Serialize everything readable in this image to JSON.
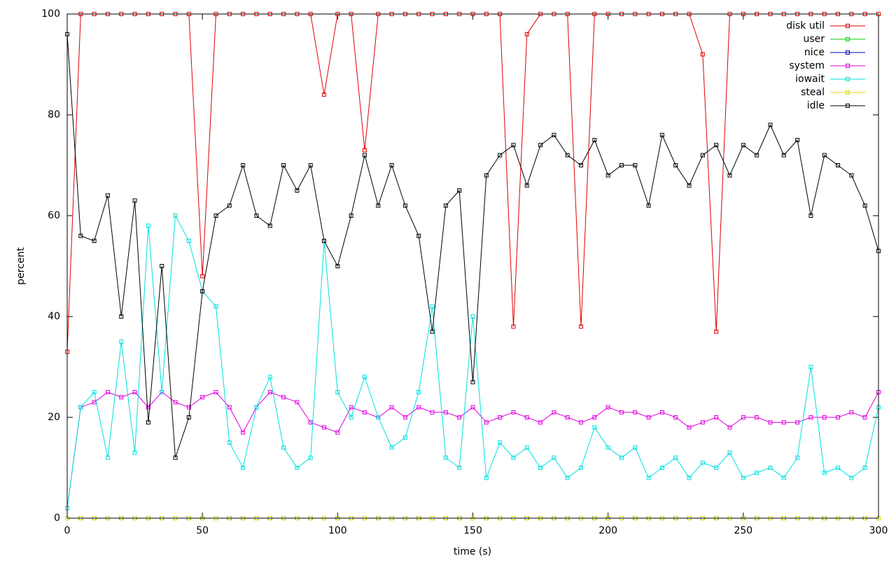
{
  "chart_data": {
    "type": "line",
    "xlabel": "time (s)",
    "ylabel": "percent",
    "x": [
      0,
      5,
      10,
      15,
      20,
      25,
      30,
      35,
      40,
      45,
      50,
      55,
      60,
      65,
      70,
      75,
      80,
      85,
      90,
      95,
      100,
      105,
      110,
      115,
      120,
      125,
      130,
      135,
      140,
      145,
      150,
      155,
      160,
      165,
      170,
      175,
      180,
      185,
      190,
      195,
      200,
      205,
      210,
      215,
      220,
      225,
      230,
      235,
      240,
      245,
      250,
      255,
      260,
      265,
      270,
      275,
      280,
      285,
      290,
      295,
      300
    ],
    "xlim": [
      0,
      300
    ],
    "xticks": [
      0,
      50,
      100,
      150,
      200,
      250,
      300
    ],
    "ylim": [
      0,
      100
    ],
    "yticks": [
      0,
      20,
      40,
      60,
      80,
      100
    ],
    "grid": false,
    "legend": "top-right",
    "series": [
      {
        "name": "disk util",
        "color": "#e00000",
        "values": [
          33,
          100,
          100,
          100,
          100,
          100,
          100,
          100,
          100,
          100,
          48,
          100,
          100,
          100,
          100,
          100,
          100,
          100,
          100,
          84,
          100,
          100,
          73,
          100,
          100,
          100,
          100,
          100,
          100,
          100,
          100,
          100,
          100,
          38,
          96,
          100,
          100,
          100,
          38,
          100,
          100,
          100,
          100,
          100,
          100,
          100,
          100,
          92,
          37,
          100,
          100,
          100,
          100,
          100,
          100,
          100,
          100,
          100,
          100,
          100,
          100
        ]
      },
      {
        "name": "user",
        "color": "#00d000",
        "values": [
          0,
          0,
          0,
          0,
          0,
          0,
          0,
          0,
          0,
          0,
          0,
          0,
          0,
          0,
          0,
          0,
          0,
          0,
          0,
          0,
          0,
          0,
          0,
          0,
          0,
          0,
          0,
          0,
          0,
          0,
          0,
          0,
          0,
          0,
          0,
          0,
          0,
          0,
          0,
          0,
          0,
          0,
          0,
          0,
          0,
          0,
          0,
          0,
          0,
          0,
          0,
          0,
          0,
          0,
          0,
          0,
          0,
          0,
          0,
          0,
          0
        ]
      },
      {
        "name": "nice",
        "color": "#0000c0",
        "values": [
          0,
          0,
          0,
          0,
          0,
          0,
          0,
          0,
          0,
          0,
          0,
          0,
          0,
          0,
          0,
          0,
          0,
          0,
          0,
          0,
          0,
          0,
          0,
          0,
          0,
          0,
          0,
          0,
          0,
          0,
          0,
          0,
          0,
          0,
          0,
          0,
          0,
          0,
          0,
          0,
          0,
          0,
          0,
          0,
          0,
          0,
          0,
          0,
          0,
          0,
          0,
          0,
          0,
          0,
          0,
          0,
          0,
          0,
          0,
          0,
          0
        ]
      },
      {
        "name": "system",
        "color": "#e000e0",
        "values": [
          2,
          22,
          23,
          25,
          24,
          25,
          22,
          25,
          23,
          22,
          24,
          25,
          22,
          17,
          22,
          25,
          24,
          23,
          19,
          18,
          17,
          22,
          21,
          20,
          22,
          20,
          22,
          21,
          21,
          20,
          22,
          19,
          20,
          21,
          20,
          19,
          21,
          20,
          19,
          20,
          22,
          21,
          21,
          20,
          21,
          20,
          18,
          19,
          20,
          18,
          20,
          20,
          19,
          19,
          19,
          20,
          20,
          20,
          21,
          20,
          25
        ]
      },
      {
        "name": "iowait",
        "color": "#00e0e0",
        "values": [
          2,
          22,
          25,
          12,
          35,
          13,
          58,
          25,
          60,
          55,
          45,
          42,
          15,
          10,
          22,
          28,
          14,
          10,
          12,
          55,
          25,
          20,
          28,
          20,
          14,
          16,
          25,
          42,
          12,
          10,
          40,
          8,
          15,
          12,
          14,
          10,
          12,
          8,
          10,
          18,
          14,
          12,
          14,
          8,
          10,
          12,
          8,
          11,
          10,
          13,
          8,
          9,
          10,
          8,
          12,
          30,
          9,
          10,
          8,
          10,
          22
        ]
      },
      {
        "name": "steal",
        "color": "#d8d800",
        "values": [
          0,
          0,
          0,
          0,
          0,
          0,
          0,
          0,
          0,
          0,
          0,
          0,
          0,
          0,
          0,
          0,
          0,
          0,
          0,
          0,
          0,
          0,
          0,
          0,
          0,
          0,
          0,
          0,
          0,
          0,
          0,
          0,
          0,
          0,
          0,
          0,
          0,
          0,
          0,
          0,
          0,
          0,
          0,
          0,
          0,
          0,
          0,
          0,
          0,
          0,
          0,
          0,
          0,
          0,
          0,
          0,
          0,
          0,
          0,
          0,
          0
        ]
      },
      {
        "name": "idle",
        "color": "#000000",
        "values": [
          96,
          56,
          55,
          64,
          40,
          63,
          19,
          50,
          12,
          20,
          45,
          60,
          62,
          70,
          60,
          58,
          70,
          65,
          70,
          55,
          50,
          60,
          72,
          62,
          70,
          62,
          56,
          37,
          62,
          65,
          27,
          68,
          72,
          74,
          66,
          74,
          76,
          72,
          70,
          75,
          68,
          70,
          70,
          62,
          76,
          70,
          66,
          72,
          74,
          68,
          74,
          72,
          78,
          72,
          75,
          60,
          72,
          70,
          68,
          62,
          53
        ]
      }
    ]
  }
}
